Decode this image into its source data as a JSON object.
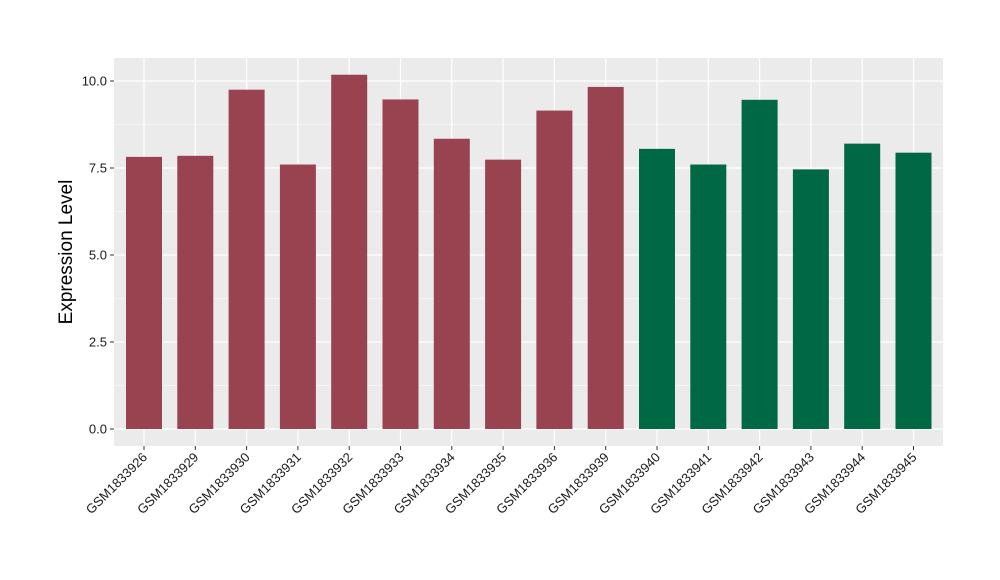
{
  "chart_data": {
    "type": "bar",
    "title": "",
    "xlabel": "",
    "ylabel": "Expression Level",
    "ylim": [
      0,
      10.5
    ],
    "yticks": [
      "0.0",
      "2.5",
      "5.0",
      "7.5",
      "10.0"
    ],
    "grid": true,
    "legend": "none",
    "categories": [
      "GSM1833926",
      "GSM1833929",
      "GSM1833930",
      "GSM1833931",
      "GSM1833932",
      "GSM1833933",
      "GSM1833934",
      "GSM1833935",
      "GSM1833936",
      "GSM1833939",
      "GSM1833940",
      "GSM1833941",
      "GSM1833942",
      "GSM1833943",
      "GSM1833944",
      "GSM1833945"
    ],
    "values": [
      7.82,
      7.85,
      9.75,
      7.6,
      10.18,
      9.47,
      8.34,
      7.74,
      9.15,
      9.83,
      8.05,
      7.6,
      9.46,
      7.46,
      8.2,
      7.94
    ],
    "groups": [
      "g1",
      "g1",
      "g1",
      "g1",
      "g1",
      "g1",
      "g1",
      "g1",
      "g1",
      "g1",
      "g2",
      "g2",
      "g2",
      "g2",
      "g2",
      "g2"
    ],
    "colors": {
      "g1": "#9a4350",
      "g2": "#006845"
    },
    "panel_background": "#ebebeb",
    "grid_color": "#ffffff"
  }
}
